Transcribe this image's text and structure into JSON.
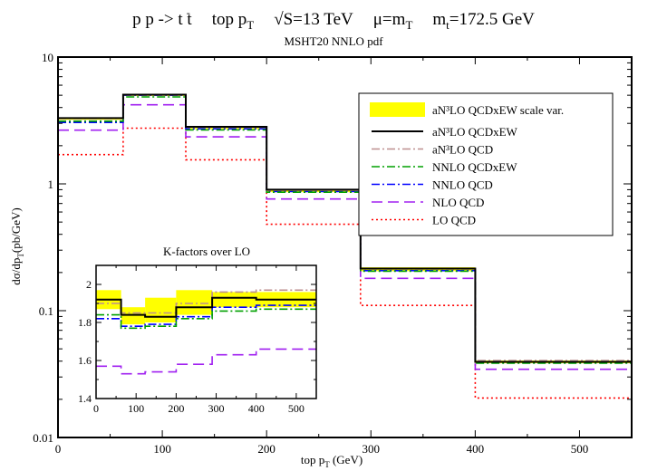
{
  "chart_data": [
    {
      "type": "line",
      "title": "p p -> t t̅   top p_T   √S=13 TeV   μ=m_T   m_t=172.5 GeV",
      "title_parts": {
        "process": "p p -> t t",
        "observable": "top p",
        "energy": "√S=13 TeV",
        "scale": "μ=m",
        "mass": "m",
        "mass_value": "=172.5 GeV",
        "sub_T": "T",
        "sub_t": "t",
        "bar": "-"
      },
      "subtitle": "MSHT20 NNLO pdf",
      "xlabel": "top p",
      "xlabel_sub": "T",
      "xlabel_unit": " (GeV)",
      "ylabel": "dσ/dp",
      "ylabel_sub": "T",
      "ylabel_unit": "(pb/GeV)",
      "yscale": "log",
      "xlim": [
        0,
        550
      ],
      "ylim": [
        0.01,
        10
      ],
      "x_ticks": [
        0,
        100,
        200,
        300,
        400,
        500
      ],
      "y_ticks": [
        {
          "value": 0.01,
          "label": "0.01"
        },
        {
          "value": 0.1,
          "label": "0.1"
        },
        {
          "value": 1,
          "label": "1"
        },
        {
          "value": 10,
          "label": "10"
        }
      ],
      "bin_edges": [
        0,
        62.5,
        122.5,
        200,
        290,
        400,
        550
      ],
      "band": {
        "name": "aN³LO QCDxEW scale var.",
        "color": "#ffff00",
        "low": [
          3.2,
          4.95,
          2.7,
          0.86,
          0.205,
          0.0385
        ],
        "high": [
          3.35,
          5.1,
          2.85,
          0.91,
          0.22,
          0.0405
        ]
      },
      "series": [
        {
          "name": "aN³LO QCDxEW",
          "color": "#000000",
          "dash": "",
          "values": [
            3.3,
            5.05,
            2.82,
            0.9,
            0.215,
            0.0395
          ]
        },
        {
          "name": "aN³LO QCD",
          "color": "#bc8f8f",
          "dash": "9,3,2,3",
          "values": [
            3.28,
            5.02,
            2.8,
            0.89,
            0.213,
            0.0405
          ]
        },
        {
          "name": "NNLO QCDxEW",
          "color": "#00a000",
          "dash": "9,3,2,3",
          "values": [
            3.12,
            4.85,
            2.66,
            0.86,
            0.205,
            0.0385
          ]
        },
        {
          "name": "NNLO QCD",
          "color": "#0000ff",
          "dash": "9,3,2,3",
          "values": [
            3.05,
            5.0,
            2.72,
            0.87,
            0.207,
            0.0395
          ]
        },
        {
          "name": "NLO QCD",
          "color": "#a020f0",
          "dash": "12,6",
          "values": [
            2.65,
            4.2,
            2.35,
            0.76,
            0.18,
            0.0345
          ]
        },
        {
          "name": "LO QCD",
          "color": "#ff0000",
          "dash": "2,3",
          "values": [
            1.7,
            2.75,
            1.55,
            0.48,
            0.11,
            0.0205
          ]
        }
      ],
      "legend_position": "top-right"
    },
    {
      "type": "line",
      "title": "K-factors over LO",
      "xlim": [
        0,
        550
      ],
      "ylim": [
        1.4,
        2.1
      ],
      "x_ticks": [
        0,
        100,
        200,
        300,
        400,
        500
      ],
      "y_ticks": [
        1.4,
        1.6,
        1.8,
        2.0
      ],
      "y_tick_labels": [
        "1.4",
        "1.6",
        "1.8",
        "2"
      ],
      "bin_edges": [
        0,
        62.5,
        122.5,
        200,
        290,
        400,
        550
      ],
      "band": {
        "color": "#ffff00",
        "low": [
          1.87,
          1.79,
          1.8,
          1.84,
          1.88,
          1.88
        ],
        "high": [
          1.97,
          1.88,
          1.93,
          1.97,
          1.96,
          1.96
        ]
      },
      "series": [
        {
          "name": "aN³LO QCDxEW",
          "color": "#000000",
          "dash": "",
          "values": [
            1.92,
            1.84,
            1.83,
            1.88,
            1.93,
            1.92
          ]
        },
        {
          "name": "aN³LO QCD",
          "color": "#bc8f8f",
          "dash": "9,3,2,3",
          "values": [
            1.9,
            1.85,
            1.85,
            1.9,
            1.96,
            1.97
          ]
        },
        {
          "name": "NNLO QCDxEW",
          "color": "#00a000",
          "dash": "9,3,2,3",
          "values": [
            1.84,
            1.77,
            1.78,
            1.82,
            1.86,
            1.87
          ]
        },
        {
          "name": "NNLO QCD",
          "color": "#0000ff",
          "dash": "9,3,2,3",
          "values": [
            1.82,
            1.78,
            1.79,
            1.83,
            1.88,
            1.89
          ]
        },
        {
          "name": "NLO QCD",
          "color": "#a020f0",
          "dash": "12,6",
          "values": [
            1.57,
            1.53,
            1.54,
            1.58,
            1.63,
            1.66
          ]
        }
      ]
    }
  ]
}
